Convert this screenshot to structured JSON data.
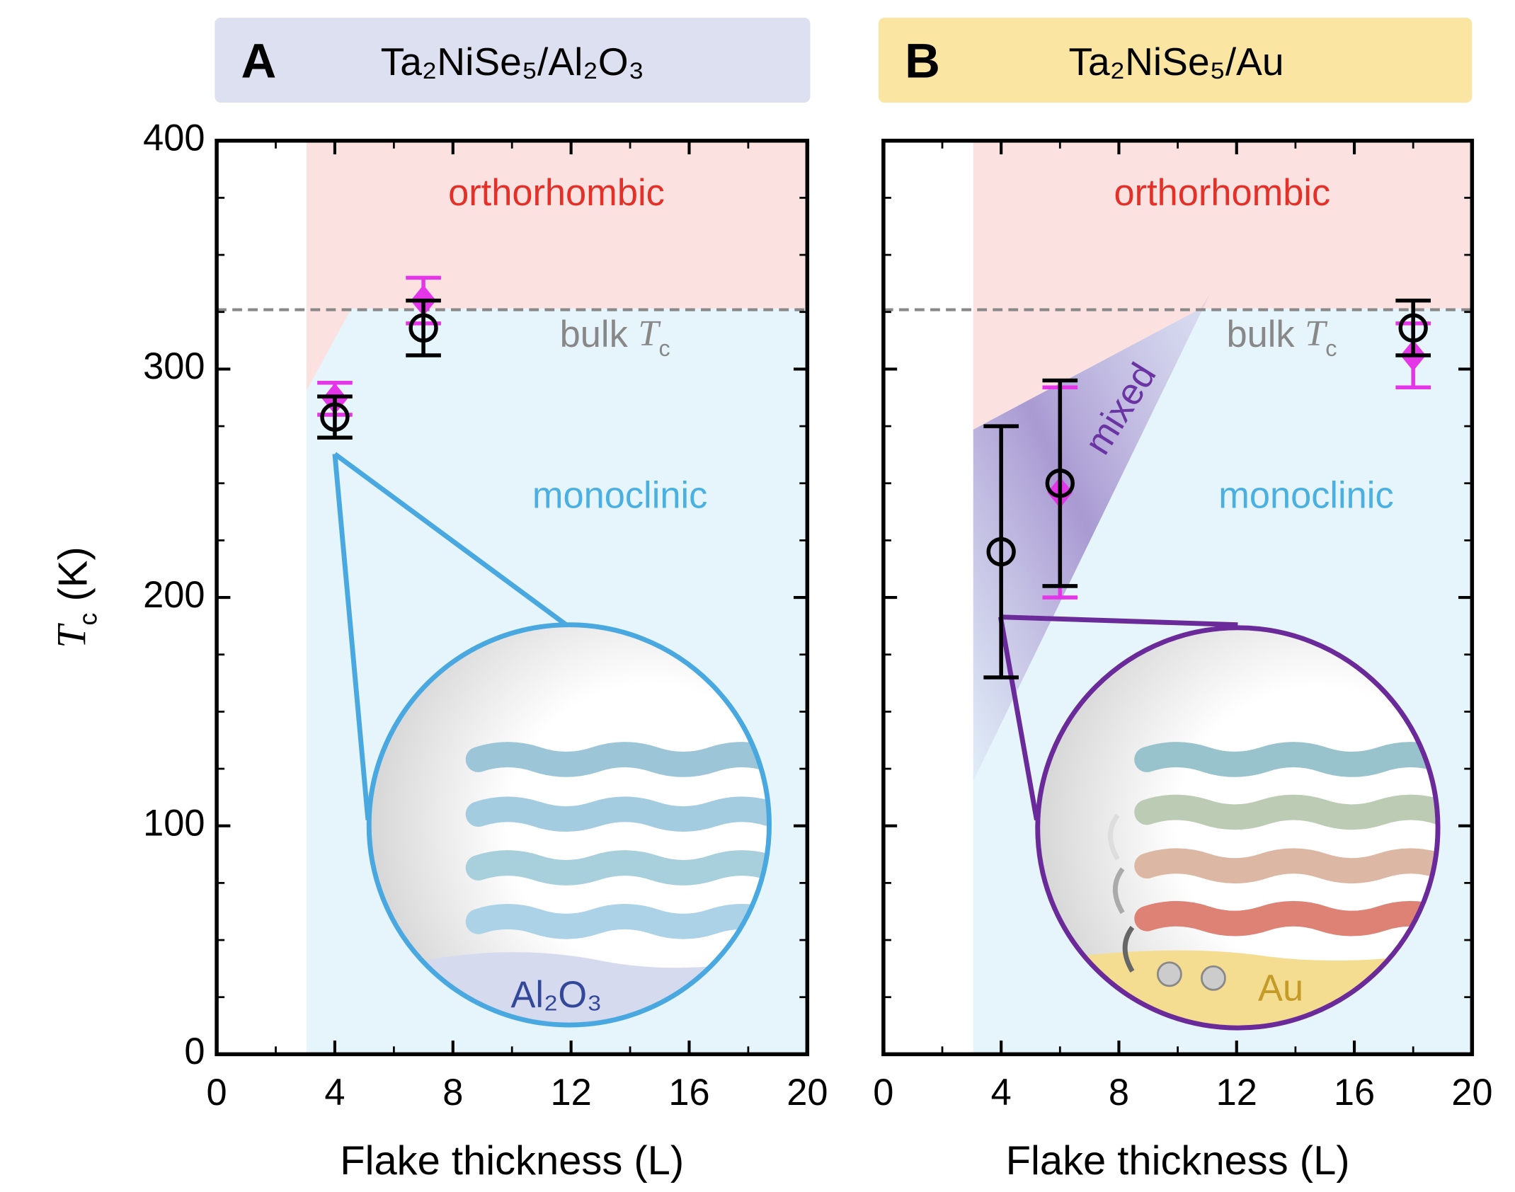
{
  "chart_data": [
    {
      "type": "scatter",
      "panel_label": "A",
      "title": "Ta₂NiSe₅/Al₂O₃",
      "xlabel": "Flake thickness (L)",
      "ylabel": [
        "T",
        "c",
        " (K)"
      ],
      "xlim": [
        0,
        20
      ],
      "xticks": [
        0,
        4,
        8,
        12,
        16,
        20
      ],
      "ylim": [
        0,
        400
      ],
      "yticks": [
        0,
        100,
        200,
        300,
        400
      ],
      "ytick_labels": true,
      "bulk_tc": 326,
      "annotations": {
        "high_phase": "orthorhombic",
        "low_phase": "monoclinic",
        "bulk": [
          "bulk ",
          "T",
          "c"
        ],
        "substrate": "Al₂O₃"
      },
      "series": [
        {
          "marker": "diamond",
          "color": "#e436e8",
          "x": [
            4,
            7
          ],
          "values": [
            287,
            330
          ],
          "errors": [
            7,
            10
          ]
        },
        {
          "marker": "circle",
          "color": "#000000",
          "x": [
            4,
            7
          ],
          "values": [
            279,
            318
          ],
          "errors": [
            9,
            12
          ]
        }
      ]
    },
    {
      "type": "scatter",
      "panel_label": "B",
      "title": "Ta₂NiSe₅/Au",
      "xlabel": "Flake thickness (L)",
      "xlim": [
        0,
        20
      ],
      "xticks": [
        0,
        4,
        8,
        12,
        16,
        20
      ],
      "ylim": [
        0,
        400
      ],
      "yticks": [
        0,
        100,
        200,
        300,
        400
      ],
      "ytick_labels": false,
      "bulk_tc": 326,
      "annotations": {
        "high_phase": "orthorhombic",
        "low_phase": "monoclinic",
        "bulk": [
          "bulk ",
          "T",
          "c"
        ],
        "mixed": "mixed",
        "substrate": "Au"
      },
      "series": [
        {
          "marker": "diamond",
          "color": "#e436e8",
          "x": [
            6,
            18
          ],
          "values": [
            246,
            306
          ],
          "errors": [
            46,
            14
          ]
        },
        {
          "marker": "circle",
          "color": "#000000",
          "x": [
            4,
            6,
            18
          ],
          "values": [
            220,
            250,
            318
          ],
          "errors": [
            55,
            45,
            12
          ]
        }
      ]
    }
  ]
}
